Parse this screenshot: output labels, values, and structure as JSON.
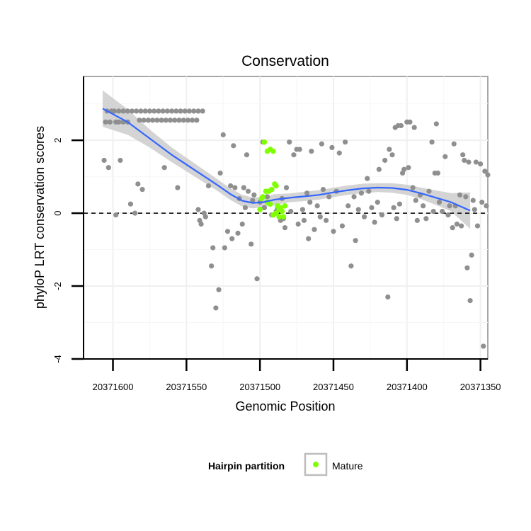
{
  "chart_data": {
    "type": "scatter",
    "title": "Conservation",
    "xlabel": "Genomic Position",
    "ylabel": "phyloP LRT conservation scores",
    "xlim": [
      20371620,
      20371345
    ],
    "ylim": [
      -4,
      3.75
    ],
    "x_ticks": [
      20371600,
      20371550,
      20371500,
      20371450,
      20371400,
      20371350
    ],
    "x_tick_labels": [
      "20371600",
      "20371550",
      "20371500",
      "20371450",
      "20371400",
      "20371350"
    ],
    "y_ticks": [
      -4,
      -2,
      0,
      2
    ],
    "y_tick_labels": [
      "-4",
      "-2",
      "0",
      "2"
    ],
    "reference_line": {
      "y": 0,
      "style": "dashed"
    },
    "legend": {
      "title": "Hairpin partition",
      "entries": [
        {
          "label": "Mature",
          "color": "#7fff00"
        }
      ]
    },
    "colors": {
      "other": "#8f8f8f",
      "mature": "#7fff00",
      "smooth": "#3366ff",
      "band": "#cccccc"
    },
    "smooth_line": {
      "x": [
        20371607,
        20371590,
        20371575,
        20371560,
        20371545,
        20371530,
        20371520,
        20371512,
        20371505,
        20371498,
        20371490,
        20371480,
        20371470,
        20371460,
        20371450,
        20371440,
        20371430,
        20371420,
        20371410,
        20371400,
        20371390,
        20371380,
        20371370,
        20371357
      ],
      "y": [
        2.87,
        2.5,
        2.05,
        1.6,
        1.2,
        0.8,
        0.52,
        0.34,
        0.28,
        0.3,
        0.37,
        0.42,
        0.46,
        0.5,
        0.57,
        0.63,
        0.68,
        0.7,
        0.69,
        0.64,
        0.54,
        0.42,
        0.3,
        0.07
      ],
      "lower": [
        2.37,
        2.15,
        1.8,
        1.4,
        1.02,
        0.64,
        0.36,
        0.18,
        0.13,
        0.16,
        0.22,
        0.3,
        0.33,
        0.37,
        0.44,
        0.5,
        0.55,
        0.58,
        0.56,
        0.5,
        0.38,
        0.22,
        0.05,
        -0.43
      ],
      "upper": [
        3.37,
        2.85,
        2.3,
        1.8,
        1.38,
        0.96,
        0.68,
        0.5,
        0.43,
        0.44,
        0.52,
        0.54,
        0.59,
        0.63,
        0.7,
        0.76,
        0.81,
        0.82,
        0.82,
        0.78,
        0.7,
        0.62,
        0.55,
        0.57
      ]
    },
    "points_other": [
      [
        20371598,
        2.5
      ],
      [
        20371596,
        2.5
      ],
      [
        20371593,
        2.5
      ],
      [
        20371590,
        2.5
      ],
      [
        20371605,
        2.5
      ],
      [
        20371602,
        2.5
      ],
      [
        20371604,
        2.8
      ],
      [
        20371601,
        2.8
      ],
      [
        20371599,
        2.8
      ],
      [
        20371596,
        2.8
      ],
      [
        20371593,
        2.8
      ],
      [
        20371590,
        2.8
      ],
      [
        20371587,
        2.8
      ],
      [
        20371584,
        2.8
      ],
      [
        20371581,
        2.8
      ],
      [
        20371578,
        2.8
      ],
      [
        20371575,
        2.8
      ],
      [
        20371572,
        2.8
      ],
      [
        20371569,
        2.8
      ],
      [
        20371566,
        2.8
      ],
      [
        20371563,
        2.8
      ],
      [
        20371560,
        2.8
      ],
      [
        20371557,
        2.8
      ],
      [
        20371554,
        2.8
      ],
      [
        20371551,
        2.8
      ],
      [
        20371548,
        2.8
      ],
      [
        20371545,
        2.8
      ],
      [
        20371542,
        2.8
      ],
      [
        20371539,
        2.8
      ],
      [
        20371582,
        2.55
      ],
      [
        20371579,
        2.55
      ],
      [
        20371576,
        2.55
      ],
      [
        20371573,
        2.55
      ],
      [
        20371570,
        2.55
      ],
      [
        20371567,
        2.55
      ],
      [
        20371564,
        2.55
      ],
      [
        20371561,
        2.55
      ],
      [
        20371558,
        2.55
      ],
      [
        20371555,
        2.55
      ],
      [
        20371552,
        2.55
      ],
      [
        20371549,
        2.55
      ],
      [
        20371546,
        2.55
      ],
      [
        20371543,
        2.55
      ],
      [
        20371606,
        1.45
      ],
      [
        20371603,
        1.25
      ],
      [
        20371595,
        1.45
      ],
      [
        20371598,
        -0.05
      ],
      [
        20371588,
        0.25
      ],
      [
        20371585,
        0
      ],
      [
        20371583,
        0.8
      ],
      [
        20371580,
        0.65
      ],
      [
        20371565,
        1.25
      ],
      [
        20371556,
        0.7
      ],
      [
        20371542,
        0.1
      ],
      [
        20371541,
        -0.2
      ],
      [
        20371540,
        -0.3
      ],
      [
        20371538,
        0
      ],
      [
        20371537,
        -0.1
      ],
      [
        20371535,
        0.75
      ],
      [
        20371533,
        -1.45
      ],
      [
        20371532,
        -0.95
      ],
      [
        20371530,
        -2.6
      ],
      [
        20371528,
        -2.1
      ],
      [
        20371527,
        1.1
      ],
      [
        20371525,
        2.15
      ],
      [
        20371524,
        -0.95
      ],
      [
        20371522,
        -0.5
      ],
      [
        20371520,
        0.75
      ],
      [
        20371519,
        -0.7
      ],
      [
        20371518,
        1.85
      ],
      [
        20371517,
        0.7
      ],
      [
        20371515,
        -0.55
      ],
      [
        20371514,
        0.4
      ],
      [
        20371512,
        -0.3
      ],
      [
        20371511,
        0.7
      ],
      [
        20371510,
        0.15
      ],
      [
        20371509,
        1.6
      ],
      [
        20371508,
        0.6
      ],
      [
        20371506,
        -0.85
      ],
      [
        20371505,
        0.35
      ],
      [
        20371504,
        0.5
      ],
      [
        20371502,
        -1.8
      ],
      [
        20371500,
        0.3
      ],
      [
        20371498,
        1.95
      ],
      [
        20371497,
        0.15
      ],
      [
        20371495,
        0.45
      ],
      [
        20371492,
        -0.05
      ],
      [
        20371488,
        0.15
      ],
      [
        20371485,
        0.4
      ],
      [
        20371484,
        -0.15
      ],
      [
        20371482,
        0.7
      ],
      [
        20371480,
        1.95
      ],
      [
        20371479,
        0.05
      ],
      [
        20371477,
        1.6
      ],
      [
        20371475,
        1.75
      ],
      [
        20371474,
        -0.3
      ],
      [
        20371473,
        1.75
      ],
      [
        20371470,
        -0.2
      ],
      [
        20371468,
        0.55
      ],
      [
        20371467,
        -0.7
      ],
      [
        20371465,
        1.7
      ],
      [
        20371463,
        -0.45
      ],
      [
        20371461,
        0.2
      ],
      [
        20371458,
        1.9
      ],
      [
        20371457,
        0.65
      ],
      [
        20371455,
        -0.2
      ],
      [
        20371453,
        0.45
      ],
      [
        20371451,
        1.8
      ],
      [
        20371450,
        -0.5
      ],
      [
        20371448,
        0.6
      ],
      [
        20371446,
        1.65
      ],
      [
        20371444,
        -0.35
      ],
      [
        20371442,
        1.95
      ],
      [
        20371440,
        0.2
      ],
      [
        20371438,
        -1.45
      ],
      [
        20371436,
        0.45
      ],
      [
        20371435,
        -0.75
      ],
      [
        20371433,
        0.1
      ],
      [
        20371431,
        0.55
      ],
      [
        20371429,
        -0.1
      ],
      [
        20371427,
        0.95
      ],
      [
        20371426,
        0.6
      ],
      [
        20371424,
        0.15
      ],
      [
        20371422,
        -0.25
      ],
      [
        20371420,
        0.3
      ],
      [
        20371419,
        1.2
      ],
      [
        20371417,
        -0.05
      ],
      [
        20371415,
        1.45
      ],
      [
        20371413,
        -2.3
      ],
      [
        20371412,
        1.75
      ],
      [
        20371410,
        1.6
      ],
      [
        20371409,
        0.15
      ],
      [
        20371408,
        2.35
      ],
      [
        20371407,
        -0.15
      ],
      [
        20371406,
        2.4
      ],
      [
        20371405,
        0.25
      ],
      [
        20371404,
        2.4
      ],
      [
        20371403,
        1.1
      ],
      [
        20371402,
        1.2
      ],
      [
        20371400,
        2.5
      ],
      [
        20371399,
        1.25
      ],
      [
        20371398,
        2.5
      ],
      [
        20371396,
        0.7
      ],
      [
        20371395,
        2.35
      ],
      [
        20371394,
        0.35
      ],
      [
        20371393,
        -0.2
      ],
      [
        20371391,
        0.5
      ],
      [
        20371389,
        0.2
      ],
      [
        20371387,
        -0.15
      ],
      [
        20371385,
        0.6
      ],
      [
        20371383,
        1.95
      ],
      [
        20371382,
        0.05
      ],
      [
        20371381,
        1.1
      ],
      [
        20371380,
        2.45
      ],
      [
        20371379,
        1.1
      ],
      [
        20371378,
        0.3
      ],
      [
        20371376,
        0.05
      ],
      [
        20371374,
        1.55
      ],
      [
        20371372,
        -0.05
      ],
      [
        20371371,
        0.2
      ],
      [
        20371369,
        -0.4
      ],
      [
        20371368,
        1.9
      ],
      [
        20371367,
        0.2
      ],
      [
        20371366,
        -0.3
      ],
      [
        20371364,
        0.5
      ],
      [
        20371363,
        -0.35
      ],
      [
        20371362,
        1.6
      ],
      [
        20371361,
        1.45
      ],
      [
        20371360,
        0.45
      ],
      [
        20371359,
        -1.5
      ],
      [
        20371358,
        1.4
      ],
      [
        20371357,
        -2.4
      ],
      [
        20371356,
        -1.15
      ],
      [
        20371355,
        0.35
      ],
      [
        20371354,
        0.1
      ],
      [
        20371353,
        1.4
      ],
      [
        20371352,
        -0.35
      ],
      [
        20371350,
        1.35
      ],
      [
        20371349,
        0.3
      ],
      [
        20371348,
        -3.65
      ],
      [
        20371347,
        1.15
      ],
      [
        20371346,
        0.2
      ],
      [
        20371345,
        1.05
      ],
      [
        20371489,
        0.05
      ],
      [
        20371486,
        -0.2
      ],
      [
        20371483,
        -0.4
      ],
      [
        20371471,
        0.1
      ],
      [
        20371466,
        0.3
      ],
      [
        20371459,
        -0.1
      ]
    ],
    "points_mature": [
      [
        20371497,
        1.95
      ],
      [
        20371495,
        1.7
      ],
      [
        20371493,
        1.75
      ],
      [
        20371491,
        1.7
      ],
      [
        20371499,
        0.4
      ],
      [
        20371498,
        0.45
      ],
      [
        20371496,
        0.6
      ],
      [
        20371494,
        0.6
      ],
      [
        20371492,
        0.65
      ],
      [
        20371490,
        0.8
      ],
      [
        20371489,
        0.75
      ],
      [
        20371500,
        0.1
      ],
      [
        20371493,
        0.25
      ],
      [
        20371491,
        -0.05
      ],
      [
        20371489,
        0
      ],
      [
        20371488,
        0.2
      ],
      [
        20371487,
        -0.1
      ],
      [
        20371486,
        0.15
      ],
      [
        20371485,
        0.05
      ],
      [
        20371484,
        -0.1
      ],
      [
        20371483,
        0.2
      ],
      [
        20371487,
        0.1
      ],
      [
        20371495,
        0.3
      ]
    ]
  }
}
